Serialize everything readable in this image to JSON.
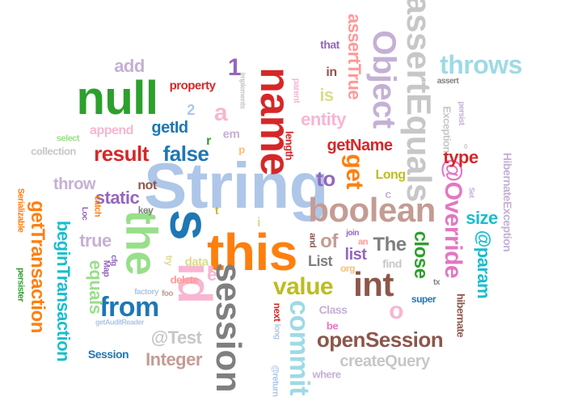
{
  "colors": {
    "blue_light": "#aec7e8",
    "blue": "#1f77b4",
    "orange": "#ff7f0e",
    "orange_light": "#ffbb78",
    "green": "#2ca02c",
    "green_light": "#98df8a",
    "red": "#d62728",
    "pink_light": "#ff9896",
    "purple": "#9467bd",
    "purple_light": "#c5b0d5",
    "brown": "#8c564b",
    "brown_light": "#c49c94",
    "magenta": "#e377c2",
    "pink": "#f7b6d2",
    "gray": "#7f7f7f",
    "gray_light": "#c7c7c7",
    "olive": "#bcbd22",
    "olive_light": "#dbdb8d",
    "cyan": "#17becf",
    "cyan_light": "#9edae5"
  },
  "words": [
    "String",
    "this",
    "s",
    "id",
    "the",
    "name",
    "null",
    "boolean",
    "int",
    "session",
    "assertEquals",
    "Object",
    "commit",
    "openSession",
    "value",
    "throws",
    "result",
    "false",
    "from",
    "@Override",
    "beginTransaction",
    "getTransaction",
    "get",
    "equals",
    "@Test",
    "Integer",
    "assertTrue",
    "getName",
    "close",
    "entity",
    "@param",
    "static",
    "size",
    "true",
    "createQuery",
    "getId",
    "list",
    "o",
    "1",
    "throw",
    "append",
    "add",
    "The",
    "type",
    "Long",
    "a",
    "is",
    "to",
    "of",
    "List",
    "HibernateException",
    "Exception",
    "hibernate",
    "Session",
    "property",
    "collection",
    "data",
    "delete",
    "Class",
    "find",
    "length",
    "in",
    "that",
    "not",
    "e",
    "2",
    "em",
    "p",
    "t",
    "c",
    "i",
    "r",
    "persist",
    "Serializable",
    "persister",
    "key",
    "catch",
    "Map",
    "try",
    "select",
    "Loc",
    "cfg",
    "parent",
    "implements",
    "org",
    "and",
    "an",
    "join",
    "super",
    "next",
    "long",
    "@return",
    "be",
    "where",
    "factory",
    "foo",
    "getAuditReader",
    "tx",
    "Set",
    "assert",
    "0"
  ]
}
